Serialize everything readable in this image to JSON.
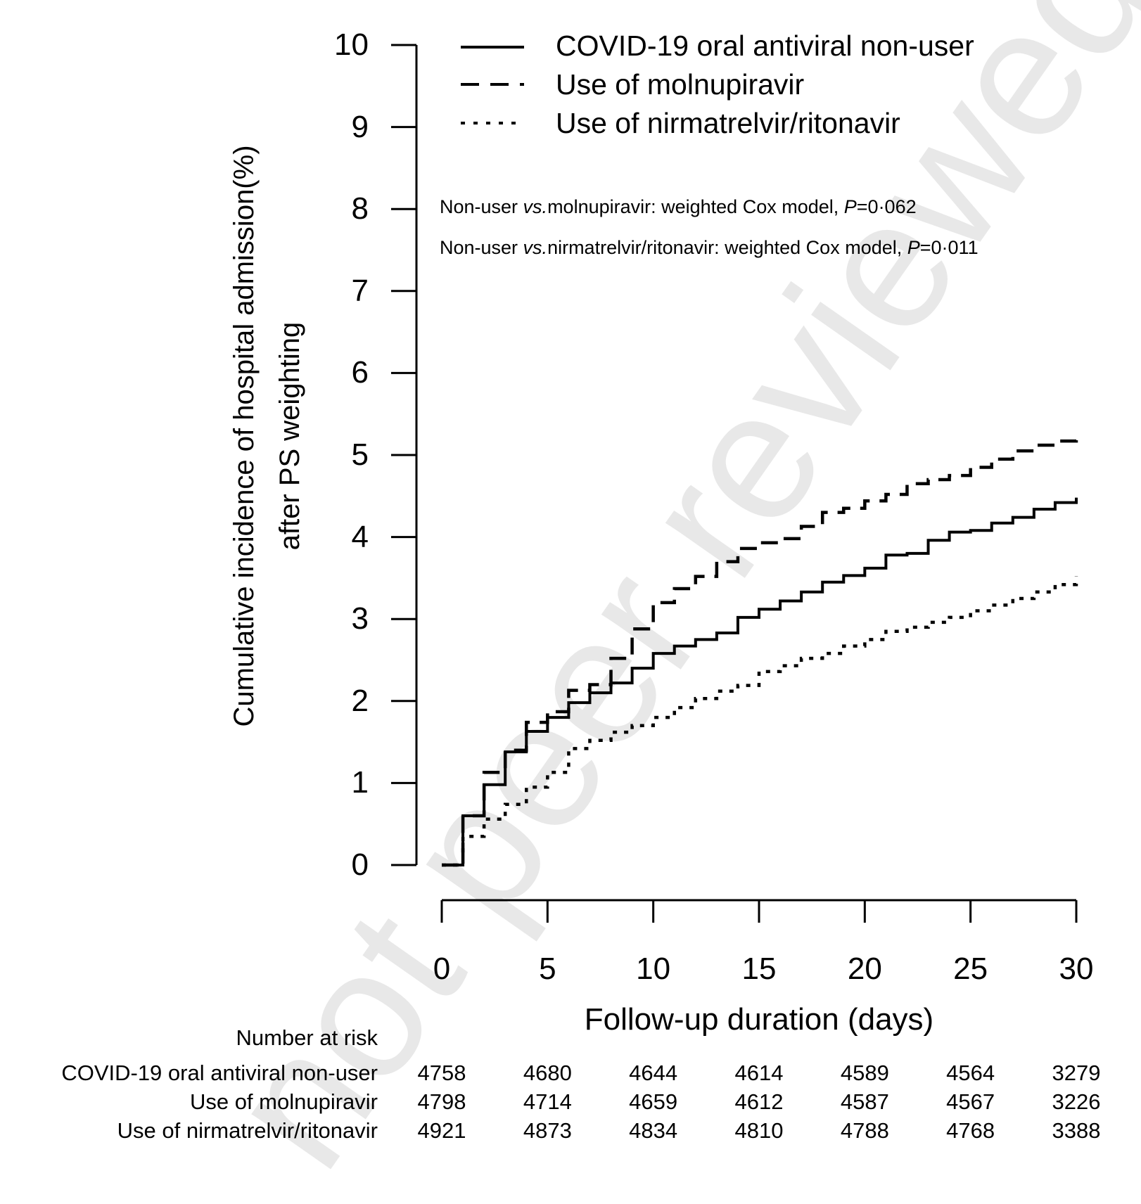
{
  "chart_data": {
    "type": "line",
    "subtype": "step",
    "title": "",
    "xlabel": "Follow-up duration (days)",
    "ylabel": [
      "Cumulative incidence of hospital admission(%)",
      "after PS weighting"
    ],
    "xlim": [
      0,
      30
    ],
    "ylim": [
      0,
      10
    ],
    "xticks": [
      0,
      5,
      10,
      15,
      20,
      25,
      30
    ],
    "yticks": [
      0,
      1,
      2,
      3,
      4,
      5,
      6,
      7,
      8,
      9,
      10
    ],
    "grid": false,
    "legend_position": "top",
    "series": [
      {
        "name": "COVID-19 oral antiviral non-user",
        "style": "solid",
        "x": [
          0,
          1,
          2,
          3,
          4,
          5,
          6,
          7,
          8,
          9,
          10,
          11,
          12,
          13,
          14,
          15,
          16,
          17,
          18,
          19,
          20,
          21,
          22,
          23,
          24,
          25,
          26,
          27,
          28,
          29,
          30
        ],
        "y": [
          0,
          0.6,
          0.98,
          1.38,
          1.63,
          1.8,
          1.98,
          2.1,
          2.22,
          2.4,
          2.58,
          2.67,
          2.75,
          2.83,
          3.02,
          3.12,
          3.22,
          3.33,
          3.45,
          3.53,
          3.62,
          3.78,
          3.8,
          3.96,
          4.06,
          4.08,
          4.17,
          4.24,
          4.34,
          4.42,
          4.48
        ]
      },
      {
        "name": "Use of molnupiravir",
        "style": "dashed",
        "x": [
          0,
          1,
          2,
          3,
          4,
          5,
          6,
          7,
          8,
          9,
          10,
          11,
          12,
          13,
          14,
          15,
          16,
          17,
          18,
          19,
          20,
          21,
          22,
          23,
          24,
          25,
          26,
          27,
          28,
          29,
          30
        ],
        "y": [
          0,
          0.6,
          1.13,
          1.4,
          1.74,
          1.87,
          2.13,
          2.2,
          2.52,
          2.88,
          3.2,
          3.37,
          3.52,
          3.7,
          3.86,
          3.93,
          3.98,
          4.13,
          4.3,
          4.35,
          4.44,
          4.52,
          4.65,
          4.7,
          4.75,
          4.85,
          4.95,
          5.05,
          5.12,
          5.17,
          5.18
        ]
      },
      {
        "name": "Use of nirmatrelvir/ritonavir",
        "style": "dotted",
        "x": [
          0,
          1,
          2,
          3,
          4,
          5,
          6,
          7,
          8,
          9,
          10,
          11,
          12,
          13,
          14,
          15,
          16,
          17,
          18,
          19,
          20,
          21,
          22,
          23,
          24,
          25,
          26,
          27,
          28,
          29,
          30
        ],
        "y": [
          0,
          0.35,
          0.56,
          0.74,
          0.95,
          1.13,
          1.42,
          1.52,
          1.62,
          1.7,
          1.8,
          1.92,
          2.03,
          2.12,
          2.19,
          2.36,
          2.43,
          2.52,
          2.58,
          2.67,
          2.75,
          2.85,
          2.9,
          2.96,
          3.02,
          3.1,
          3.17,
          3.25,
          3.33,
          3.42,
          3.52
        ]
      }
    ],
    "annotations": [
      {
        "prefix": "Non-user ",
        "italic": "vs.",
        "middle": "molnupiravir: weighted Cox model, ",
        "p_label": "P",
        "value": "=0·062"
      },
      {
        "prefix": "Non-user ",
        "italic": "vs.",
        "middle": "nirmatrelvir/ritonavir: weighted Cox model, ",
        "p_label": "P",
        "value": "=0·011"
      }
    ]
  },
  "risk_table": {
    "title": "Number at risk",
    "timepoints": [
      0,
      5,
      10,
      15,
      20,
      25,
      30
    ],
    "rows": [
      {
        "label": "COVID-19 oral antiviral non-user",
        "values": [
          "4758",
          "4680",
          "4644",
          "4614",
          "4589",
          "4564",
          "3279"
        ]
      },
      {
        "label": "Use of molnupiravir",
        "values": [
          "4798",
          "4714",
          "4659",
          "4612",
          "4587",
          "4567",
          "3226"
        ]
      },
      {
        "label": "Use of nirmatrelvir/ritonavir",
        "values": [
          "4921",
          "4873",
          "4834",
          "4810",
          "4788",
          "4768",
          "3388"
        ]
      }
    ]
  },
  "watermark": "not peer reviewed"
}
